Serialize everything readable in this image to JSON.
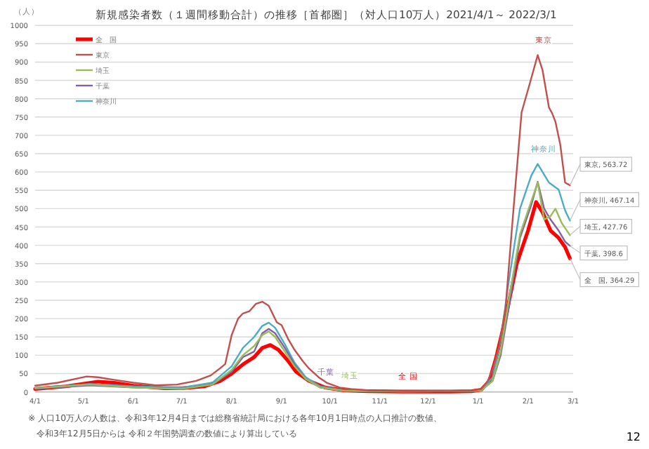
{
  "chart_data": {
    "type": "line",
    "title": "新規感染者数（１週間移動合計）の推移［首都圏］（対人口10万人）2021/4/1～ 2022/3/1",
    "ylabel": "（人）",
    "xlim": [
      "2021-04-01",
      "2022-03-01"
    ],
    "ylim": [
      0,
      1000
    ],
    "yticks": [
      0,
      50,
      100,
      150,
      200,
      250,
      300,
      350,
      400,
      450,
      500,
      550,
      600,
      650,
      700,
      750,
      800,
      850,
      900,
      950,
      1000
    ],
    "grid": "y",
    "legend": "top left",
    "xticks": [
      {
        "value": "2021-04-01",
        "label": "4/1"
      },
      {
        "value": "2021-05-01",
        "label": "5/1"
      },
      {
        "value": "2021-06-01",
        "label": "6/1"
      },
      {
        "value": "2021-07-01",
        "label": "7/1"
      },
      {
        "value": "2021-08-01",
        "label": "8/1"
      },
      {
        "value": "2021-09-01",
        "label": "9/1"
      },
      {
        "value": "2021-10-01",
        "label": "10/1"
      },
      {
        "value": "2021-11-01",
        "label": "11/1"
      },
      {
        "value": "2021-12-01",
        "label": "12/1"
      },
      {
        "value": "2022-01-01",
        "label": "1/1"
      },
      {
        "value": "2022-02-01",
        "label": "2/1"
      },
      {
        "value": "2022-03-01",
        "label": "3/1"
      }
    ],
    "marker": "none",
    "series": [
      {
        "name": "全　国",
        "color": "#ff0000",
        "x": [
          "2021-04-01",
          "2021-04-20",
          "2021-05-10",
          "2021-05-20",
          "2021-06-01",
          "2021-06-20",
          "2021-07-01",
          "2021-07-15",
          "2021-07-25",
          "2021-08-01",
          "2021-08-08",
          "2021-08-15",
          "2021-08-20",
          "2021-08-25",
          "2021-08-30",
          "2021-09-05",
          "2021-09-10",
          "2021-09-18",
          "2021-09-28",
          "2021-10-10",
          "2021-10-25",
          "2021-11-15",
          "2021-12-15",
          "2021-12-28",
          "2022-01-03",
          "2022-01-08",
          "2022-01-12",
          "2022-01-18",
          "2022-01-25",
          "2022-02-01",
          "2022-02-06",
          "2022-02-10",
          "2022-02-15",
          "2022-02-20",
          "2022-02-24",
          "2022-02-27"
        ],
        "values": [
          8,
          15,
          28,
          25,
          17,
          10,
          10,
          15,
          30,
          50,
          75,
          95,
          120,
          128,
          115,
          85,
          55,
          30,
          12,
          4,
          2,
          1,
          1,
          2,
          6,
          30,
          90,
          200,
          350,
          440,
          518,
          490,
          440,
          420,
          395,
          364.29
        ]
      },
      {
        "name": "東京",
        "color": "#c0504d",
        "x": [
          "2021-04-01",
          "2021-04-15",
          "2021-05-03",
          "2021-05-10",
          "2021-05-20",
          "2021-06-01",
          "2021-06-15",
          "2021-06-28",
          "2021-07-10",
          "2021-07-19",
          "2021-07-25",
          "2021-07-28",
          "2021-08-01",
          "2021-08-05",
          "2021-08-08",
          "2021-08-12",
          "2021-08-16",
          "2021-08-20",
          "2021-08-24",
          "2021-08-29",
          "2021-09-01",
          "2021-09-05",
          "2021-09-09",
          "2021-09-14",
          "2021-09-18",
          "2021-09-24",
          "2021-09-29",
          "2021-10-07",
          "2021-10-14",
          "2021-10-25",
          "2021-11-15",
          "2021-12-15",
          "2021-12-28",
          "2022-01-03",
          "2022-01-07",
          "2022-01-10",
          "2022-01-14",
          "2022-01-18",
          "2022-01-23",
          "2022-01-28",
          "2022-02-02",
          "2022-02-07",
          "2022-02-10",
          "2022-02-14",
          "2022-02-16",
          "2022-02-18",
          "2022-02-21",
          "2022-02-24",
          "2022-02-27"
        ],
        "values": [
          17,
          25,
          42,
          40,
          33,
          25,
          18,
          20,
          30,
          45,
          65,
          76,
          155,
          200,
          214,
          220,
          240,
          246,
          235,
          190,
          182,
          145,
          115,
          85,
          64,
          40,
          25,
          12,
          8,
          4,
          2,
          2,
          3,
          8,
          30,
          60,
          125,
          228,
          500,
          763,
          840,
          919,
          878,
          776,
          760,
          737,
          675,
          571,
          563.72
        ]
      },
      {
        "name": "埼玉",
        "color": "#9bbb59",
        "x": [
          "2021-04-01",
          "2021-05-05",
          "2021-06-01",
          "2021-07-01",
          "2021-07-20",
          "2021-08-01",
          "2021-08-08",
          "2021-08-15",
          "2021-08-20",
          "2021-08-24",
          "2021-08-28",
          "2021-09-03",
          "2021-09-09",
          "2021-09-16",
          "2021-09-25",
          "2021-10-10",
          "2021-11-15",
          "2021-12-28",
          "2022-01-03",
          "2022-01-10",
          "2022-01-15",
          "2022-01-20",
          "2022-01-27",
          "2022-02-03",
          "2022-02-07",
          "2022-02-11",
          "2022-02-15",
          "2022-02-18",
          "2022-02-22",
          "2022-02-27"
        ],
        "values": [
          10,
          20,
          12,
          8,
          20,
          60,
          100,
          125,
          155,
          165,
          150,
          110,
          70,
          35,
          12,
          3,
          1,
          2,
          4,
          30,
          110,
          250,
          430,
          520,
          571,
          470,
          480,
          500,
          460,
          427.76
        ]
      },
      {
        "name": "千葉",
        "color": "#8064a2",
        "x": [
          "2021-04-01",
          "2021-05-05",
          "2021-06-01",
          "2021-07-01",
          "2021-07-20",
          "2021-08-01",
          "2021-08-08",
          "2021-08-15",
          "2021-08-20",
          "2021-08-24",
          "2021-08-28",
          "2021-09-03",
          "2021-09-09",
          "2021-09-16",
          "2021-09-25",
          "2021-10-10",
          "2021-11-15",
          "2021-12-28",
          "2022-01-03",
          "2022-01-10",
          "2022-01-15",
          "2022-01-20",
          "2022-01-27",
          "2022-02-03",
          "2022-02-07",
          "2022-02-11",
          "2022-02-15",
          "2022-02-20",
          "2022-02-24",
          "2022-02-27"
        ],
        "values": [
          8,
          18,
          12,
          8,
          20,
          55,
          95,
          110,
          160,
          172,
          160,
          120,
          75,
          35,
          12,
          3,
          1,
          2,
          4,
          30,
          100,
          230,
          420,
          510,
          573,
          500,
          470,
          440,
          410,
          398.6
        ]
      },
      {
        "name": "神奈川",
        "color": "#4bacc6",
        "x": [
          "2021-04-01",
          "2021-05-05",
          "2021-06-01",
          "2021-07-01",
          "2021-07-20",
          "2021-08-01",
          "2021-08-08",
          "2021-08-15",
          "2021-08-20",
          "2021-08-24",
          "2021-08-28",
          "2021-09-03",
          "2021-09-09",
          "2021-09-16",
          "2021-09-25",
          "2021-10-10",
          "2021-11-15",
          "2021-12-28",
          "2022-01-03",
          "2022-01-10",
          "2022-01-15",
          "2022-01-20",
          "2022-01-27",
          "2022-02-03",
          "2022-02-07",
          "2022-02-10",
          "2022-02-14",
          "2022-02-20",
          "2022-02-24",
          "2022-02-27"
        ],
        "values": [
          10,
          22,
          15,
          12,
          25,
          70,
          120,
          150,
          180,
          189,
          175,
          130,
          80,
          40,
          15,
          4,
          1,
          2,
          5,
          40,
          140,
          300,
          500,
          590,
          622,
          600,
          571,
          552,
          495,
          467.14
        ]
      }
    ],
    "annotations": [
      {
        "text": "東京",
        "x": "2022-02-07",
        "y": 919
      },
      {
        "text": "神奈川",
        "x": "2022-02-07",
        "y": 622
      },
      {
        "text": "千葉",
        "x": "2021-09-25",
        "y": 12
      },
      {
        "text": "埼玉",
        "x": "2021-10-10",
        "y": 3
      },
      {
        "text": "全 国",
        "x": "2021-11-15",
        "y": 1
      },
      {
        "text": "東京, 563.72",
        "x": "2022-02-27",
        "y": 563.72
      },
      {
        "text": "神奈川, 467.14",
        "x": "2022-02-27",
        "y": 467.14
      },
      {
        "text": "埼玉, 427.76",
        "x": "2022-02-27",
        "y": 427.76
      },
      {
        "text": "千葉, 398.6",
        "x": "2022-02-27",
        "y": 398.6
      },
      {
        "text": "全　国, 364.29",
        "x": "2022-02-27",
        "y": 364.29
      },
      "※ 人口10万人の人数は、令和3年12月4日までは総務省統計局における各年10月1日時点の人口推計の数値、",
      "令和3年12月5日からは 令和２年国勢調査の数値により算出している",
      "12"
    ]
  }
}
